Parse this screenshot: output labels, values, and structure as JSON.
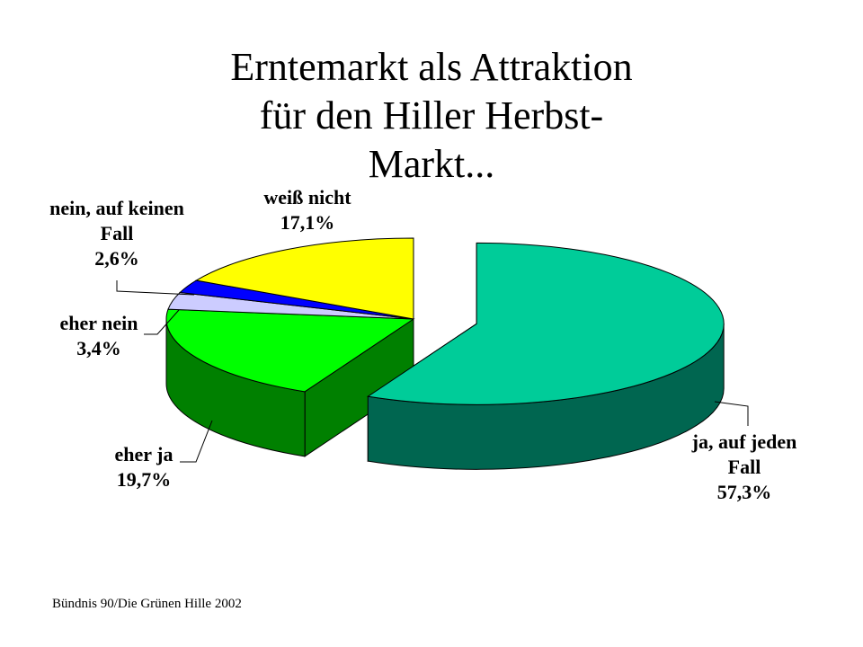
{
  "chart_data": {
    "type": "pie",
    "title_lines": [
      "Erntemarkt als Attraktion",
      "für den Hiller Herbst-",
      "Markt..."
    ],
    "slices": [
      {
        "label_lines": [
          "ja, auf jeden",
          "Fall"
        ],
        "value_text": "57,3%",
        "value": 57.3,
        "color": "#00CC99",
        "side_color": "#006650",
        "exploded": true
      },
      {
        "label_lines": [
          "eher ja"
        ],
        "value_text": "19,7%",
        "value": 19.7,
        "color": "#00FF00",
        "side_color": "#008000"
      },
      {
        "label_lines": [
          "eher nein"
        ],
        "value_text": "3,4%",
        "value": 3.4,
        "color": "#CCCCFF",
        "side_color": "#666699"
      },
      {
        "label_lines": [
          "nein, auf keinen",
          "Fall"
        ],
        "value_text": "2,6%",
        "value": 2.6,
        "color": "#0000FF",
        "side_color": "#000080"
      },
      {
        "label_lines": [
          "weiß nicht"
        ],
        "value_text": "17,1%",
        "value": 17.1,
        "color": "#FFFF00",
        "side_color": "#808000"
      }
    ]
  },
  "footer": "Bündnis 90/Die Grünen Hille 2002"
}
